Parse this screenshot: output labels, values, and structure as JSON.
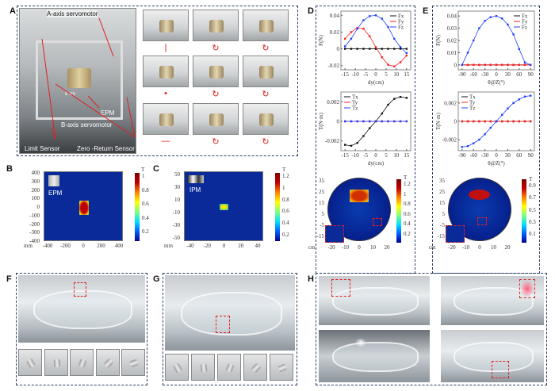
{
  "panels": {
    "A": "A",
    "B": "B",
    "C": "C",
    "D": "D",
    "E": "E",
    "F": "F",
    "G": "G",
    "H": "H"
  },
  "panelA": {
    "labels": {
      "a_axis": "A-axis servomotor",
      "b_axis": "B-axis servomotor",
      "epm": "EPM",
      "scale": "8 cm",
      "limit": "Limit Sensor",
      "zero": "Zero -Return Sensor"
    },
    "symbols": [
      "|",
      "↻",
      "↻",
      "•",
      "↻",
      "↻",
      "—",
      "↻",
      "↻"
    ]
  },
  "panelB": {
    "inset": "EPM",
    "unit": "T",
    "axis_unit": "mm",
    "yticks": [
      "400",
      "300",
      "200",
      "100",
      "0",
      "-100",
      "-200",
      "-300",
      "-400"
    ],
    "xticks": [
      "-400",
      "-200",
      "0",
      "200",
      "400"
    ],
    "cbar": [
      "1",
      "0.8",
      "0.6",
      "0.4",
      "0.2"
    ]
  },
  "panelC": {
    "inset": "IPM",
    "unit": "T",
    "axis_unit": "mm",
    "yticks": [
      "50",
      "30",
      "10",
      "-10",
      "-30",
      "-50"
    ],
    "xticks": [
      "-40",
      "-20",
      "0",
      "20",
      "40"
    ],
    "cbar": [
      "1.2",
      "1",
      "0.8",
      "0.6",
      "0.4",
      "0.2"
    ]
  },
  "panelD_disc": {
    "unit": "T",
    "axis_unit": "cm",
    "yticks": [
      "35",
      "25",
      "15",
      "5",
      "-5",
      "-15"
    ],
    "xticks": [
      "-20",
      "-10",
      "0",
      "10",
      "20"
    ],
    "cbar": [
      "1.2",
      "1",
      "0.8",
      "0.6",
      "0.4",
      "0.2"
    ]
  },
  "panelE_disc": {
    "unit": "T",
    "axis_unit": "cm",
    "yticks": [
      "35",
      "25",
      "15",
      "5",
      "-5",
      "-15"
    ],
    "xticks": [
      "-20",
      "-10",
      "0",
      "10",
      "20"
    ],
    "cbar": [
      "0.9",
      "0.7",
      "0.5",
      "0.3",
      "0.1"
    ]
  },
  "chart_data": [
    {
      "id": "D_force",
      "type": "line",
      "xlabel": "dy(cm)",
      "ylabel": "F(N)",
      "xlim": [
        -17,
        17
      ],
      "ylim": [
        -0.025,
        0.045
      ],
      "xticks": [
        -15,
        -10,
        -5,
        0,
        5,
        10,
        15
      ],
      "yticks": [
        -0.02,
        0,
        0.02,
        0.04
      ],
      "legend": "top-right",
      "x": [
        -15,
        -12,
        -9,
        -6,
        -3,
        0,
        3,
        6,
        9,
        12,
        15
      ],
      "series": [
        {
          "name": "Fx",
          "color": "#111111",
          "values": [
            0,
            0,
            0,
            0,
            0,
            0,
            0,
            0,
            0,
            0,
            0
          ]
        },
        {
          "name": "Fy",
          "color": "#ff2020",
          "values": [
            0.012,
            0.02,
            0.025,
            0.024,
            0.015,
            0.002,
            -0.01,
            -0.019,
            -0.021,
            -0.016,
            -0.008
          ]
        },
        {
          "name": "Fz",
          "color": "#2040ff",
          "values": [
            0.003,
            0.012,
            0.024,
            0.034,
            0.039,
            0.04,
            0.036,
            0.026,
            0.012,
            0.002,
            -0.005
          ]
        }
      ]
    },
    {
      "id": "D_torque",
      "type": "line",
      "xlabel": "dy(cm)",
      "ylabel": "T(N·m)",
      "xlim": [
        -17,
        17
      ],
      "ylim": [
        -0.003,
        0.003
      ],
      "xticks": [
        -15,
        -10,
        -5,
        0,
        5,
        10,
        15
      ],
      "yticks": [
        -0.002,
        0,
        0.002
      ],
      "legend": "top-left",
      "x": [
        -15,
        -12,
        -9,
        -6,
        -3,
        0,
        3,
        6,
        9,
        12,
        15
      ],
      "series": [
        {
          "name": "Tx",
          "color": "#111111",
          "values": [
            -0.0024,
            -0.0025,
            -0.0022,
            -0.0015,
            -0.0007,
            0,
            0.0008,
            0.0017,
            0.0023,
            0.0025,
            0.0024
          ]
        },
        {
          "name": "Ty",
          "color": "#ff2020",
          "values": [
            0,
            0,
            0,
            0,
            0,
            0,
            0,
            0,
            0,
            0,
            0
          ]
        },
        {
          "name": "Tz",
          "color": "#2040ff",
          "values": [
            0,
            0,
            0,
            0,
            0,
            0,
            0,
            0,
            0,
            0,
            0
          ]
        }
      ]
    },
    {
      "id": "E_force",
      "type": "line",
      "xlabel": "θ@Z(°)",
      "ylabel": "F(N)",
      "xlim": [
        -100,
        100
      ],
      "ylim": [
        -0.004,
        0.044
      ],
      "xticks": [
        -90,
        -60,
        -30,
        0,
        30,
        60,
        90
      ],
      "yticks": [
        0,
        0.01,
        0.02,
        0.03,
        0.04
      ],
      "legend": "top-right",
      "x": [
        -90,
        -75,
        -60,
        -45,
        -30,
        -15,
        0,
        15,
        30,
        45,
        60,
        75,
        90
      ],
      "series": [
        {
          "name": "Fx",
          "color": "#111111",
          "values": [
            0,
            0,
            0,
            0,
            0,
            0,
            0,
            0,
            0,
            0,
            0,
            0,
            0
          ]
        },
        {
          "name": "Fy",
          "color": "#ff2020",
          "values": [
            0,
            0,
            0,
            0,
            0,
            0,
            0,
            0,
            0,
            0,
            0,
            0,
            0
          ]
        },
        {
          "name": "Fz",
          "color": "#2040ff",
          "values": [
            0.0,
            0.01,
            0.02,
            0.03,
            0.036,
            0.039,
            0.04,
            0.038,
            0.033,
            0.025,
            0.013,
            0.002,
            0.0
          ]
        }
      ]
    },
    {
      "id": "E_torque",
      "type": "line",
      "xlabel": "θ@Z(°)",
      "ylabel": "T(N·m)",
      "xlim": [
        -100,
        100
      ],
      "ylim": [
        -0.0032,
        0.0032
      ],
      "xticks": [
        -90,
        -60,
        -30,
        0,
        30,
        60,
        90
      ],
      "yticks": [
        -0.002,
        0,
        0.002
      ],
      "legend": "top-left",
      "x": [
        -90,
        -75,
        -60,
        -45,
        -30,
        -15,
        0,
        15,
        30,
        45,
        60,
        75,
        90
      ],
      "series": [
        {
          "name": "Tx",
          "color": "#111111",
          "values": [
            0,
            0,
            0,
            0,
            0,
            0,
            0,
            0,
            0,
            0,
            0,
            0,
            0
          ]
        },
        {
          "name": "Ty",
          "color": "#ff2020",
          "values": [
            0,
            0,
            0,
            0,
            0,
            0,
            0,
            0,
            0,
            0,
            0,
            0,
            0
          ]
        },
        {
          "name": "Tz",
          "color": "#2040ff",
          "values": [
            -0.0028,
            -0.0027,
            -0.0024,
            -0.002,
            -0.0014,
            -0.0007,
            0,
            0.0007,
            0.0014,
            0.002,
            0.0024,
            0.0027,
            0.0028
          ]
        }
      ]
    }
  ]
}
